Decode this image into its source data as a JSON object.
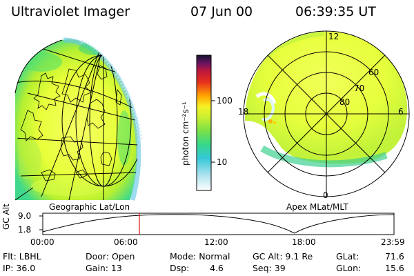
{
  "header": {
    "title": "Ultraviolet Imager",
    "date": "07 Jun 00",
    "time": "06:39:35 UT"
  },
  "left_panel": {
    "label": "Geographic Lat/Lon"
  },
  "right_panel": {
    "label": "Apex MLat/MLT",
    "mlt_labels": [
      "12",
      "18",
      "6",
      "0"
    ],
    "lat_labels": [
      "60",
      "70",
      "80"
    ]
  },
  "colorbar": {
    "unit_label": "photon cm⁻²s⁻¹",
    "tick_labels": [
      "100",
      "10"
    ]
  },
  "altitude_strip": {
    "axis_label": "GC Alt",
    "y_ticks": [
      "9.0",
      "1.8"
    ],
    "x_ticks": [
      "00:00",
      "06:00",
      "12:00",
      "18:00",
      "23:59"
    ]
  },
  "info": {
    "flt": "Flt: LBHL",
    "ip": "IP: 36.0",
    "door": "Door: Open",
    "gain": "Gain: 13",
    "mode": "Mode: Normal",
    "dsp_label": "Dsp:",
    "dsp_value": "4.6",
    "gc_alt": "GC Alt: 9.1 Re",
    "seq": "Seq: 39",
    "glat_label": "GLat:",
    "glat_value": "71.6",
    "glon_label": "GLon:",
    "glon_value": "15.6"
  }
}
